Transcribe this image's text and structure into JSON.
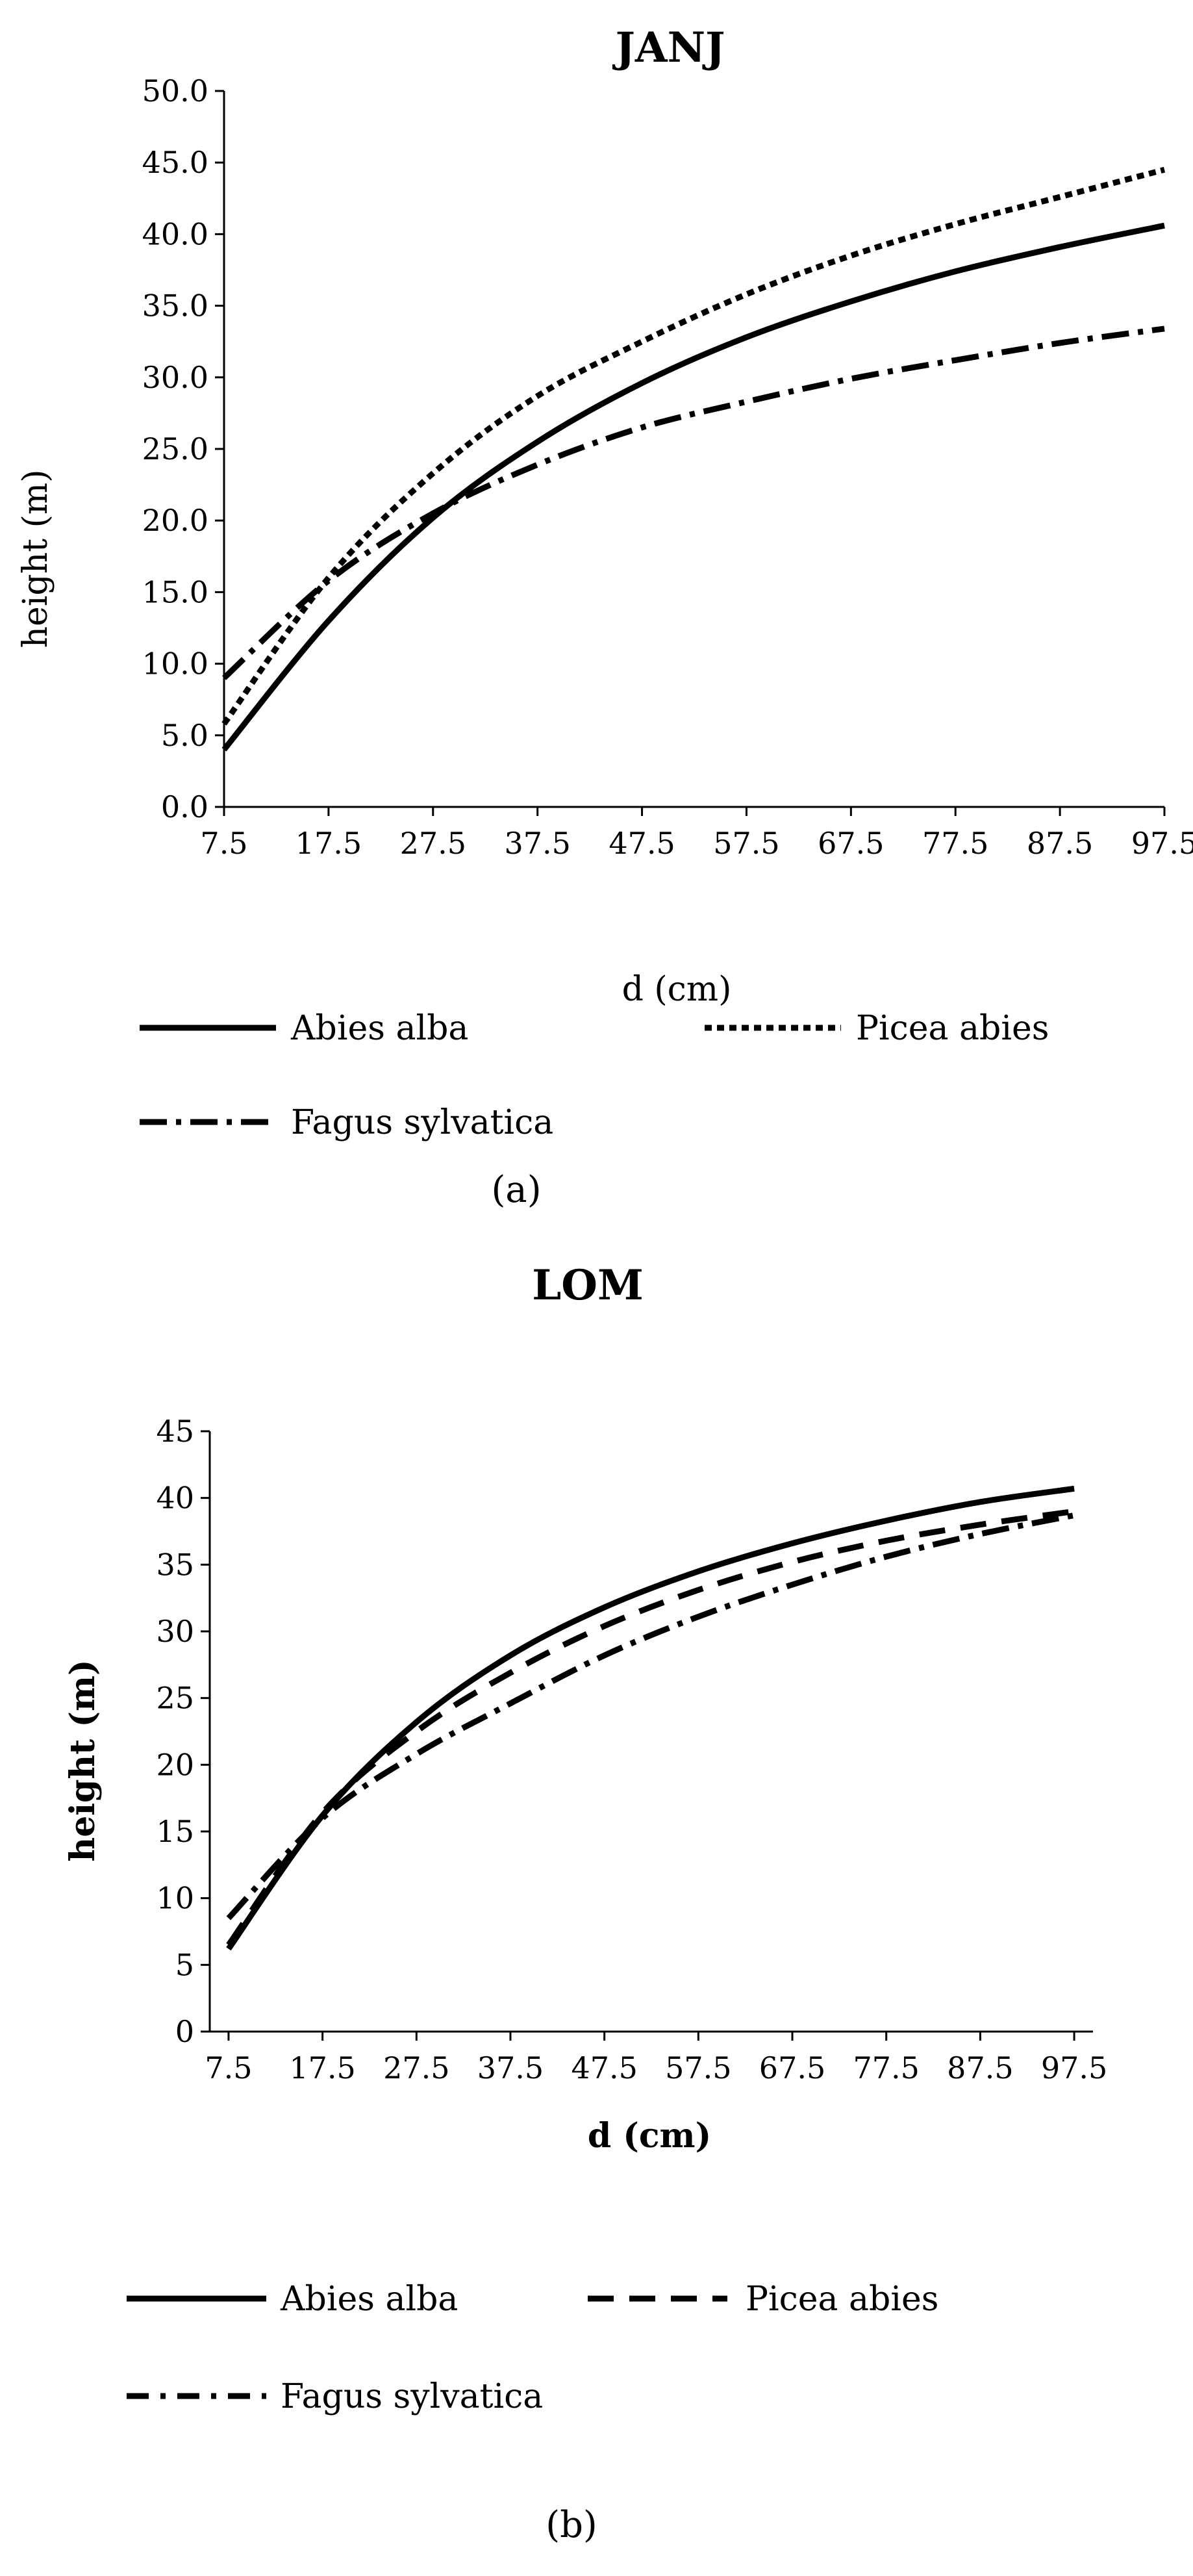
{
  "chart_data": [
    {
      "type": "line",
      "panel_label": "(a)",
      "title": "JANJ",
      "xlabel": "d (cm)",
      "ylabel": "height (m)",
      "categories": [
        "7.5",
        "17.5",
        "27.5",
        "37.5",
        "47.5",
        "57.5",
        "67.5",
        "77.5",
        "87.5",
        "97.5"
      ],
      "x": [
        7.5,
        17.5,
        27.5,
        37.5,
        47.5,
        57.5,
        67.5,
        77.5,
        87.5,
        97.5
      ],
      "xlim": [
        7.5,
        97.5
      ],
      "ylim": [
        0,
        50
      ],
      "yticks": [
        "0.0",
        "5.0",
        "10.0",
        "15.0",
        "20.0",
        "25.0",
        "30.0",
        "35.0",
        "40.0",
        "45.0",
        "50.0"
      ],
      "grid": false,
      "legend_position": "bottom",
      "series": [
        {
          "name": "Abies alba",
          "style": "solid",
          "values": [
            4.0,
            13.0,
            20.2,
            25.5,
            29.6,
            32.8,
            35.3,
            37.4,
            39.1,
            40.6
          ]
        },
        {
          "name": "Picea abies",
          "style": "dotted",
          "values": [
            5.8,
            16.0,
            23.3,
            28.7,
            32.5,
            35.8,
            38.5,
            40.7,
            42.6,
            44.5
          ]
        },
        {
          "name": "Fagus sylvatica",
          "style": "dashdot",
          "values": [
            9.0,
            15.8,
            20.5,
            23.9,
            26.5,
            28.3,
            29.9,
            31.2,
            32.4,
            33.4
          ]
        }
      ]
    },
    {
      "type": "line",
      "panel_label": "(b)",
      "title": "LOM",
      "xlabel": "d (cm)",
      "ylabel": "height (m)",
      "categories": [
        "7.5",
        "17.5",
        "27.5",
        "37.5",
        "47.5",
        "57.5",
        "67.5",
        "77.5",
        "87.5",
        "97.5"
      ],
      "x": [
        7.5,
        17.5,
        27.5,
        37.5,
        47.5,
        57.5,
        67.5,
        77.5,
        87.5,
        97.5
      ],
      "xlim": [
        5.5,
        99.5
      ],
      "ylim": [
        0,
        45
      ],
      "yticks": [
        "0",
        "5",
        "10",
        "15",
        "20",
        "25",
        "30",
        "35",
        "40",
        "45"
      ],
      "grid": false,
      "legend_position": "bottom",
      "series": [
        {
          "name": "Abies alba",
          "style": "solid",
          "values": [
            6.2,
            16.2,
            23.2,
            28.2,
            31.8,
            34.5,
            36.6,
            38.3,
            39.7,
            40.7
          ]
        },
        {
          "name": "Picea abies",
          "style": "dashed",
          "values": [
            6.5,
            16.4,
            22.5,
            26.9,
            30.4,
            33.1,
            35.2,
            36.8,
            38.0,
            39.0
          ]
        },
        {
          "name": "Fagus sylvatica",
          "style": "dashdot",
          "values": [
            8.5,
            16.0,
            20.8,
            24.6,
            28.2,
            31.1,
            33.5,
            35.6,
            37.3,
            38.7
          ]
        }
      ]
    }
  ]
}
